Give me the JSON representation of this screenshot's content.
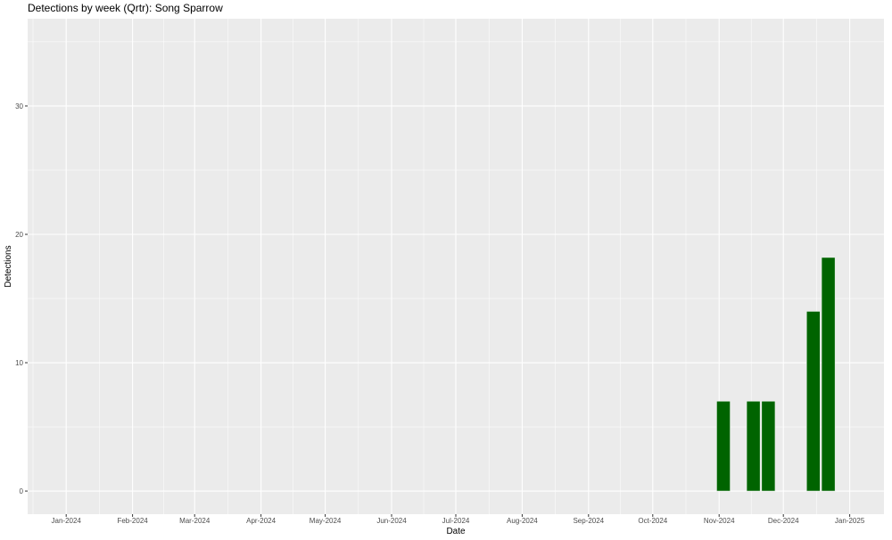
{
  "chart_data": {
    "type": "bar",
    "title": "Detections by week (Qrtr): Song Sparrow",
    "xlabel": "Date",
    "ylabel": "Detections",
    "xlim": [
      "2023-12-14",
      "2025-01-17"
    ],
    "ylim": [
      -1.8,
      36.8
    ],
    "yticks": [
      0,
      10,
      20,
      30
    ],
    "xticks": [
      {
        "date": "2024-01-01",
        "label": "Jan-2024"
      },
      {
        "date": "2024-02-01",
        "label": "Feb-2024"
      },
      {
        "date": "2024-03-01",
        "label": "Mar-2024"
      },
      {
        "date": "2024-04-01",
        "label": "Apr-2024"
      },
      {
        "date": "2024-05-01",
        "label": "May-2024"
      },
      {
        "date": "2024-06-01",
        "label": "Jun-2024"
      },
      {
        "date": "2024-07-01",
        "label": "Jul-2024"
      },
      {
        "date": "2024-08-01",
        "label": "Aug-2024"
      },
      {
        "date": "2024-09-01",
        "label": "Sep-2024"
      },
      {
        "date": "2024-10-01",
        "label": "Oct-2024"
      },
      {
        "date": "2024-11-01",
        "label": "Nov-2024"
      },
      {
        "date": "2024-12-01",
        "label": "Dec-2024"
      },
      {
        "date": "2025-01-01",
        "label": "Jan-2025"
      }
    ],
    "bars": [
      {
        "date": "2024-11-03",
        "value": 7
      },
      {
        "date": "2024-11-17",
        "value": 7
      },
      {
        "date": "2024-11-24",
        "value": 7
      },
      {
        "date": "2024-12-15",
        "value": 14
      },
      {
        "date": "2024-12-22",
        "value": 18.2
      }
    ],
    "grid": true,
    "legend": "none",
    "colors": {
      "bar": "#006400",
      "panel": "#EBEBEB",
      "grid": "#FFFFFF"
    }
  }
}
